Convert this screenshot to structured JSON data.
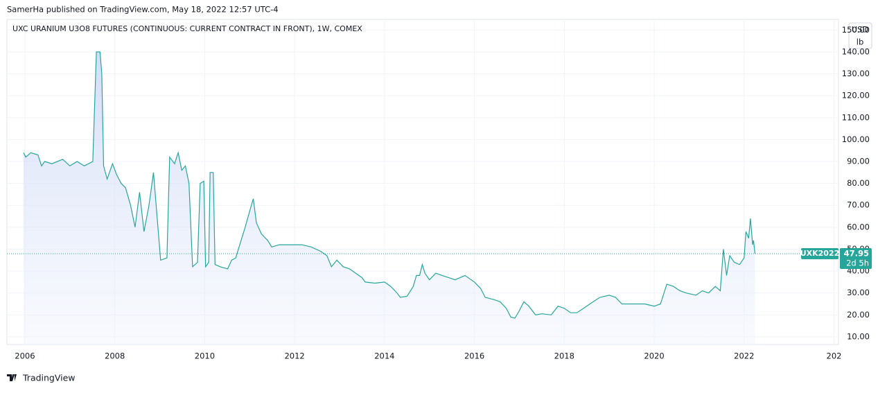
{
  "header": "SamerHa published on TradingView.com, May 18, 2022 12:57 UTC-4",
  "footer": "TradingView",
  "chart_data": {
    "type": "area",
    "title": "UXC URANIUM U3O8 FUTURES (CONTINUOUS: CURRENT CONTRACT IN FRONT), 1W, COMEX",
    "currency": "USD",
    "unit": "lb",
    "countdown": "2d 5h",
    "x": [
      2005.97,
      2006.02,
      2006.13,
      2006.29,
      2006.37,
      2006.44,
      2006.6,
      2006.84,
      2007.0,
      2007.16,
      2007.32,
      2007.51,
      2007.59,
      2007.67,
      2007.71,
      2007.75,
      2007.83,
      2007.95,
      2008.04,
      2008.14,
      2008.24,
      2008.35,
      2008.45,
      2008.55,
      2008.65,
      2008.76,
      2008.86,
      2008.96,
      2009.02,
      2009.16,
      2009.22,
      2009.33,
      2009.41,
      2009.49,
      2009.57,
      2009.65,
      2009.73,
      2009.84,
      2009.9,
      2009.98,
      2010.02,
      2010.09,
      2010.12,
      2010.19,
      2010.23,
      2010.34,
      2010.51,
      2010.6,
      2010.69,
      2010.78,
      2010.9,
      2011.01,
      2011.08,
      2011.15,
      2011.26,
      2011.4,
      2011.49,
      2011.66,
      2011.93,
      2012.16,
      2012.37,
      2012.58,
      2012.72,
      2012.82,
      2012.94,
      2013.08,
      2013.22,
      2013.36,
      2013.5,
      2013.57,
      2013.79,
      2014.0,
      2014.14,
      2014.28,
      2014.35,
      2014.5,
      2014.64,
      2014.71,
      2014.78,
      2014.84,
      2014.9,
      2015.0,
      2015.14,
      2015.28,
      2015.43,
      2015.57,
      2015.79,
      2016.0,
      2016.14,
      2016.24,
      2016.43,
      2016.57,
      2016.71,
      2016.81,
      2016.9,
      2017.0,
      2017.1,
      2017.21,
      2017.36,
      2017.5,
      2017.71,
      2017.86,
      2018.0,
      2018.14,
      2018.28,
      2018.43,
      2018.57,
      2018.79,
      2019.0,
      2019.14,
      2019.28,
      2019.5,
      2019.79,
      2020.0,
      2020.14,
      2020.28,
      2020.43,
      2020.57,
      2020.71,
      2020.93,
      2021.07,
      2021.21,
      2021.36,
      2021.47,
      2021.54,
      2021.61,
      2021.68,
      2021.78,
      2021.9,
      2022.0,
      2022.04,
      2022.1,
      2022.14,
      2022.19,
      2022.21,
      2022.24
    ],
    "series": [
      {
        "name": "UXK2022",
        "color": "#26a69a",
        "values": [
          94,
          92,
          94,
          93,
          88,
          90,
          89,
          91,
          88,
          90,
          88,
          90,
          140,
          140,
          130,
          88,
          82,
          89,
          84,
          80,
          78,
          70,
          60,
          76,
          58,
          70,
          85,
          60,
          45,
          46,
          92,
          89,
          94,
          86,
          88,
          80,
          42,
          44,
          80,
          81,
          42,
          44,
          85,
          85,
          43,
          42,
          41,
          45,
          46,
          52,
          60,
          68,
          73,
          62,
          57,
          54,
          51,
          52,
          52,
          52,
          51,
          49,
          47,
          42,
          45,
          42,
          41,
          39,
          37,
          35,
          34.5,
          35,
          33,
          30,
          28,
          28.5,
          33,
          38,
          38,
          43,
          39,
          36,
          39,
          38,
          37,
          36,
          38,
          35,
          32,
          28,
          27,
          26,
          23,
          19,
          18.5,
          22,
          26,
          24,
          20,
          20.5,
          20,
          24,
          23,
          21,
          21,
          23,
          25,
          28,
          29,
          28,
          25,
          25,
          25,
          24,
          25,
          34,
          33,
          31,
          30,
          29,
          31,
          30,
          33,
          31,
          50,
          38,
          47,
          44,
          43,
          46,
          58,
          55,
          64,
          52,
          54,
          47.95
        ]
      }
    ],
    "xlim": [
      2005.6,
      2024.1
    ],
    "xticks": [
      2006,
      2008,
      2010,
      2012,
      2014,
      2016,
      2018,
      2020,
      2022,
      {
        "value": 2024,
        "label": "202"
      }
    ],
    "ylim": [
      6.5,
      154.2
    ],
    "yticks": [
      {
        "value": 10,
        "label": "10.00"
      },
      {
        "value": 20,
        "label": "20.00"
      },
      {
        "value": 30,
        "label": "30.00"
      },
      {
        "value": 40,
        "label": "40.00"
      },
      {
        "value": 50,
        "label": "50.00"
      },
      {
        "value": 60,
        "label": "60.00"
      },
      {
        "value": 70,
        "label": "70.00"
      },
      {
        "value": 80,
        "label": "80.00"
      },
      {
        "value": 90,
        "label": "90.00"
      },
      {
        "value": 100,
        "label": "100.00"
      },
      {
        "value": 110,
        "label": "110.00"
      },
      {
        "value": 120,
        "label": "120.00"
      },
      {
        "value": 130,
        "label": "130.00"
      },
      {
        "value": 140,
        "label": "140.00"
      },
      {
        "value": 150,
        "label": "150.00"
      }
    ],
    "grid": true
  }
}
